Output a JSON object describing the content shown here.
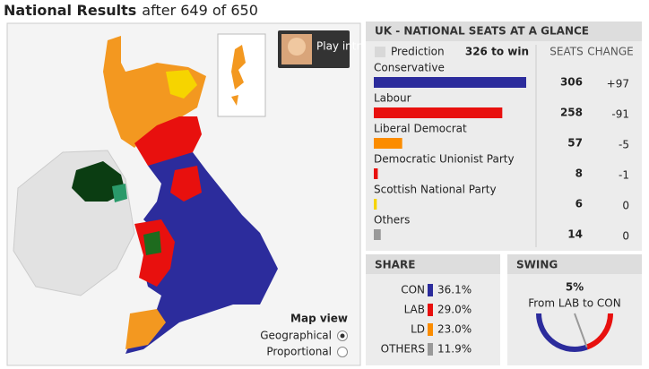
{
  "header": {
    "title": "National Results",
    "subtitle": "after 649 of 650"
  },
  "map": {
    "play_button": "Play intro",
    "view_title": "Map view",
    "options": [
      "Geographical",
      "Proportional"
    ],
    "selected": 0
  },
  "seats": {
    "title": "UK - NATIONAL SEATS AT A GLANCE",
    "prediction": "Prediction",
    "to_win": "326 to win",
    "columns": [
      "SEATS",
      "CHANGE"
    ],
    "parties": [
      {
        "name": "Conservative",
        "color": "#2c2c9c",
        "seats": 306,
        "change": "+97"
      },
      {
        "name": "Labour",
        "color": "#e8100e",
        "seats": 258,
        "change": "-91"
      },
      {
        "name": "Liberal Democrat",
        "color": "#fb8c00",
        "seats": 57,
        "change": "-5"
      },
      {
        "name": "Democratic Unionist Party",
        "color": "#e8100e",
        "seats": 8,
        "change": "-1"
      },
      {
        "name": "Scottish National Party",
        "color": "#f6d400",
        "seats": 6,
        "change": "0"
      },
      {
        "name": "Others",
        "color": "#999999",
        "seats": 14,
        "change": "0"
      }
    ]
  },
  "share": {
    "title": "SHARE",
    "rows": [
      {
        "party": "CON",
        "color": "#2c2c9c",
        "value": 36.1,
        "label": "36.1%"
      },
      {
        "party": "LAB",
        "color": "#e8100e",
        "value": 29.0,
        "label": "29.0%"
      },
      {
        "party": "LD",
        "color": "#fb8c00",
        "value": 23.0,
        "label": "23.0%"
      },
      {
        "party": "OTHERS",
        "color": "#999999",
        "value": 11.9,
        "label": "11.9%"
      }
    ]
  },
  "swing": {
    "title": "SWING",
    "value": 5,
    "value_label": "5%",
    "text": "From LAB to CON",
    "colors": [
      "#2c2c9c",
      "#e8100e"
    ]
  }
}
